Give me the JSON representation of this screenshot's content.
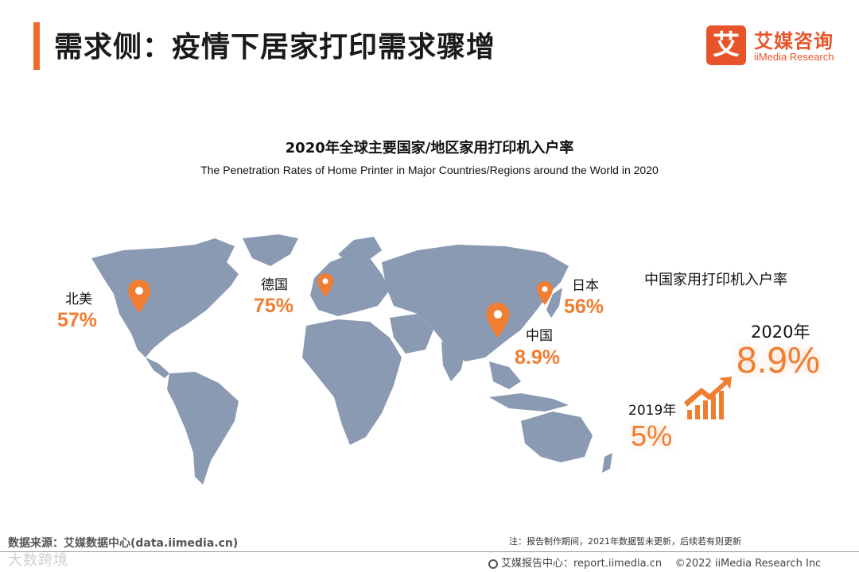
{
  "header": {
    "title": "需求侧：疫情下居家打印需求骤增",
    "brand_logo_glyph": "艾",
    "brand_cn": "艾媒咨询",
    "brand_en": "iiMedia Research",
    "accent_color": "#f06a2c"
  },
  "chart": {
    "title_cn": "2020年全球主要国家/地区家用打印机入户率",
    "title_en": "The Penetration Rates of Home Printer in Major Countries/Regions around the World in 2020"
  },
  "chart_data": {
    "type": "map",
    "regions": [
      {
        "name": "北美",
        "value": "57%"
      },
      {
        "name": "德国",
        "value": "75%"
      },
      {
        "name": "日本",
        "value": "56%"
      },
      {
        "name": "中国",
        "value": "8.9%"
      }
    ],
    "highlight_color": "#ef7d32",
    "map_color": "#8a9ab3"
  },
  "china_trend": {
    "title": "中国家用打印机入户率",
    "points": [
      {
        "year": "2019年",
        "value": "5%"
      },
      {
        "year": "2020年",
        "value": "8.9%"
      }
    ],
    "icon": "growth-chart-icon"
  },
  "footer": {
    "source": "数据来源：艾媒数据中心(data.iimedia.cn)",
    "note": "注：报告制作期间，2021年数据暂未更新，后续若有则更新",
    "report_center": "艾媒报告中心：report.iimedia.cn",
    "copyright": "©2022  iiMedia Research  Inc",
    "watermark": "大数跨境"
  }
}
